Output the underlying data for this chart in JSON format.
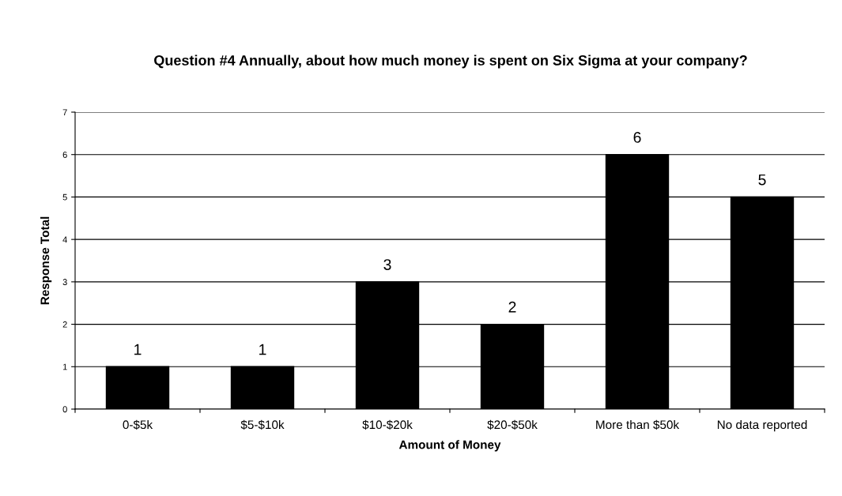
{
  "chart_data": {
    "type": "bar",
    "title": "Question #4 Annually, about how much money is spent on Six Sigma at your company?",
    "xlabel": "Amount of Money",
    "ylabel": "Response Total",
    "categories": [
      "0-$5k",
      "$5-$10k",
      "$10-$20k",
      "$20-$50k",
      "More than $50k",
      "No data reported"
    ],
    "values": [
      1,
      1,
      3,
      2,
      6,
      5
    ],
    "color": "#000000",
    "ylim": [
      0,
      7
    ],
    "yticks": [
      0,
      1,
      2,
      3,
      4,
      5,
      6,
      7
    ],
    "grid": "y",
    "data_labels": true
  }
}
